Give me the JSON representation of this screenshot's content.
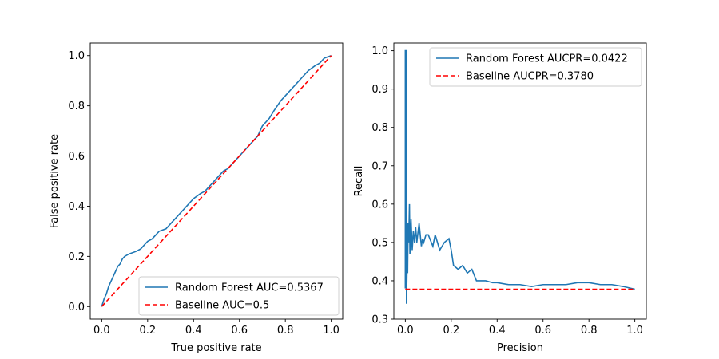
{
  "chart_data": [
    {
      "type": "line",
      "xlabel": "True positive rate",
      "ylabel": "False positive rate",
      "xlim": [
        -0.05,
        1.05
      ],
      "ylim": [
        -0.05,
        1.05
      ],
      "xticks": [
        "0.0",
        "0.2",
        "0.4",
        "0.6",
        "0.8",
        "1.0"
      ],
      "yticks": [
        "0.0",
        "0.2",
        "0.4",
        "0.6",
        "0.8",
        "1.0"
      ],
      "legend_position": "lower-right",
      "grid": false,
      "series": [
        {
          "name": "Random Forest AUC=0.5367",
          "color": "#1f77b4",
          "style": "solid",
          "x": [
            0,
            0.01,
            0.02,
            0.03,
            0.04,
            0.05,
            0.06,
            0.07,
            0.08,
            0.09,
            0.1,
            0.12,
            0.15,
            0.17,
            0.2,
            0.22,
            0.25,
            0.28,
            0.3,
            0.33,
            0.35,
            0.38,
            0.4,
            0.43,
            0.45,
            0.48,
            0.5,
            0.53,
            0.55,
            0.58,
            0.6,
            0.63,
            0.65,
            0.68,
            0.7,
            0.73,
            0.75,
            0.78,
            0.8,
            0.83,
            0.85,
            0.88,
            0.9,
            0.93,
            0.95,
            0.97,
            1.0
          ],
          "y": [
            0,
            0.03,
            0.05,
            0.08,
            0.1,
            0.12,
            0.14,
            0.16,
            0.17,
            0.19,
            0.2,
            0.21,
            0.22,
            0.23,
            0.26,
            0.27,
            0.3,
            0.31,
            0.33,
            0.36,
            0.38,
            0.41,
            0.43,
            0.45,
            0.46,
            0.49,
            0.51,
            0.54,
            0.55,
            0.58,
            0.6,
            0.63,
            0.65,
            0.68,
            0.72,
            0.75,
            0.78,
            0.82,
            0.84,
            0.87,
            0.89,
            0.92,
            0.94,
            0.96,
            0.97,
            0.99,
            1.0
          ]
        },
        {
          "name": "Baseline AUC=0.5",
          "color": "#ff0000",
          "style": "dashed",
          "x": [
            0,
            1
          ],
          "y": [
            0,
            1
          ]
        }
      ]
    },
    {
      "type": "line",
      "xlabel": "Precision",
      "ylabel": "Recall",
      "xlim": [
        -0.05,
        1.05
      ],
      "ylim": [
        0.3,
        1.02
      ],
      "xticks": [
        "0.0",
        "0.2",
        "0.4",
        "0.6",
        "0.8",
        "1.0"
      ],
      "yticks": [
        "0.3",
        "0.4",
        "0.5",
        "0.6",
        "0.7",
        "0.8",
        "0.9",
        "1.0"
      ],
      "legend_position": "upper-right",
      "grid": false,
      "series": [
        {
          "name": "Random Forest AUCPR=0.0422",
          "color": "#1f77b4",
          "style": "solid",
          "x": [
            0.0,
            0.0,
            0.005,
            0.005,
            0.008,
            0.01,
            0.012,
            0.015,
            0.018,
            0.02,
            0.025,
            0.03,
            0.035,
            0.04,
            0.045,
            0.05,
            0.06,
            0.07,
            0.075,
            0.08,
            0.09,
            0.1,
            0.12,
            0.13,
            0.15,
            0.17,
            0.19,
            0.2,
            0.21,
            0.23,
            0.25,
            0.27,
            0.29,
            0.31,
            0.33,
            0.35,
            0.38,
            0.4,
            0.45,
            0.5,
            0.55,
            0.6,
            0.65,
            0.7,
            0.75,
            0.8,
            0.85,
            0.9,
            0.95,
            1.0
          ],
          "y": [
            0.38,
            1.0,
            1.0,
            0.34,
            0.45,
            0.42,
            0.55,
            0.5,
            0.6,
            0.47,
            0.56,
            0.48,
            0.53,
            0.5,
            0.54,
            0.5,
            0.55,
            0.49,
            0.51,
            0.5,
            0.52,
            0.52,
            0.49,
            0.52,
            0.48,
            0.5,
            0.51,
            0.48,
            0.44,
            0.43,
            0.44,
            0.42,
            0.43,
            0.4,
            0.4,
            0.4,
            0.395,
            0.395,
            0.39,
            0.39,
            0.385,
            0.39,
            0.39,
            0.39,
            0.395,
            0.395,
            0.39,
            0.39,
            0.385,
            0.378
          ],
          "note": ""
        },
        {
          "name": "Baseline AUCPR=0.3780",
          "color": "#ff0000",
          "style": "dashed",
          "x": [
            0,
            1
          ],
          "y": [
            0.378,
            0.378
          ]
        }
      ]
    }
  ]
}
